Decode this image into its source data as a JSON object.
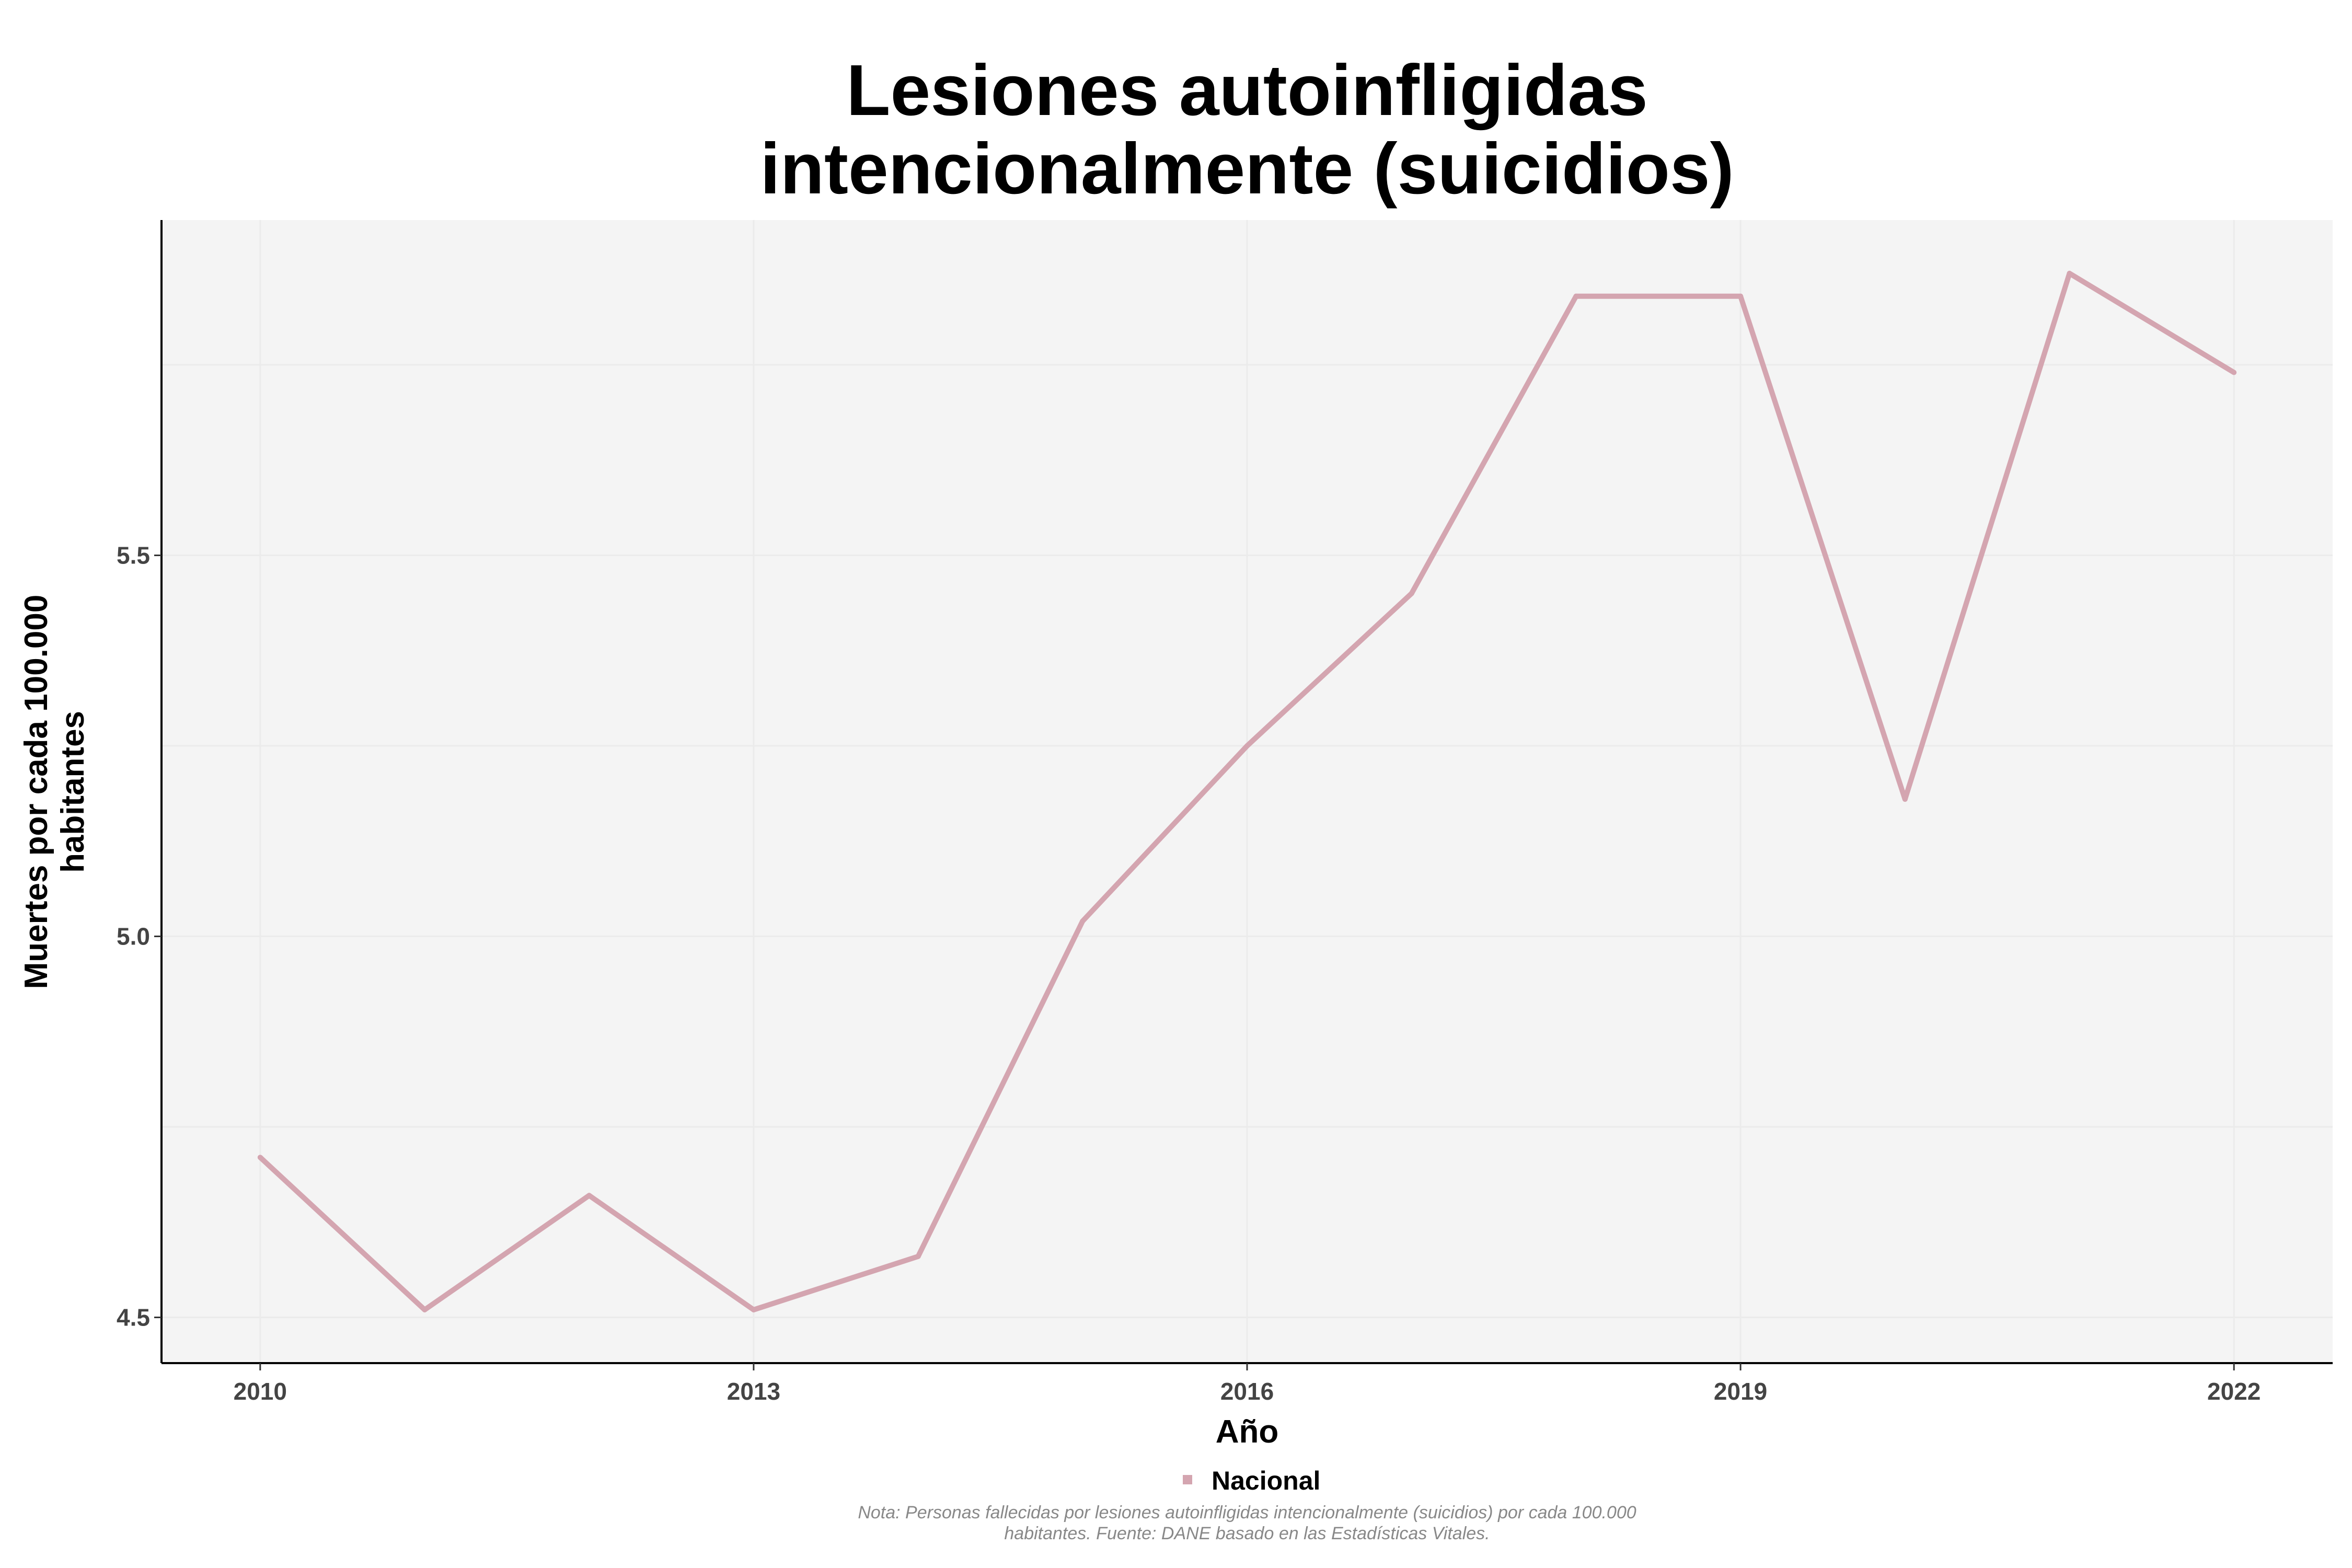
{
  "chart_data": {
    "type": "line",
    "title": [
      "Lesiones autoinfligidas",
      "intencionalmente (suicidios)"
    ],
    "xlabel": "Año",
    "ylabel": [
      "Muertes por cada 100.000",
      "habitantes"
    ],
    "x": [
      2010,
      2011,
      2012,
      2013,
      2014,
      2015,
      2016,
      2017,
      2018,
      2019,
      2020,
      2021,
      2022
    ],
    "series": [
      {
        "name": "Nacional",
        "color": "#d4a5b0",
        "values": [
          4.71,
          4.51,
          4.66,
          4.51,
          4.58,
          5.02,
          5.25,
          5.45,
          5.84,
          5.84,
          5.18,
          5.87,
          5.74
        ]
      }
    ],
    "xticks": [
      "2010",
      "2013",
      "2016",
      "2019",
      "2022"
    ],
    "yticks": [
      "4.5",
      "5.0",
      "5.5"
    ],
    "xlim": [
      2009.4,
      2022.6
    ],
    "ylim": [
      4.44,
      5.94
    ],
    "grid": true,
    "panel_background": "#f4f4f4",
    "legend_position": "bottom",
    "note": [
      "Nota: Personas fallecidas por lesiones autoinfligidas intencionalmente (suicidios) por cada 100.000",
      "habitantes. Fuente: DANE basado en las Estadísticas Vitales."
    ]
  }
}
